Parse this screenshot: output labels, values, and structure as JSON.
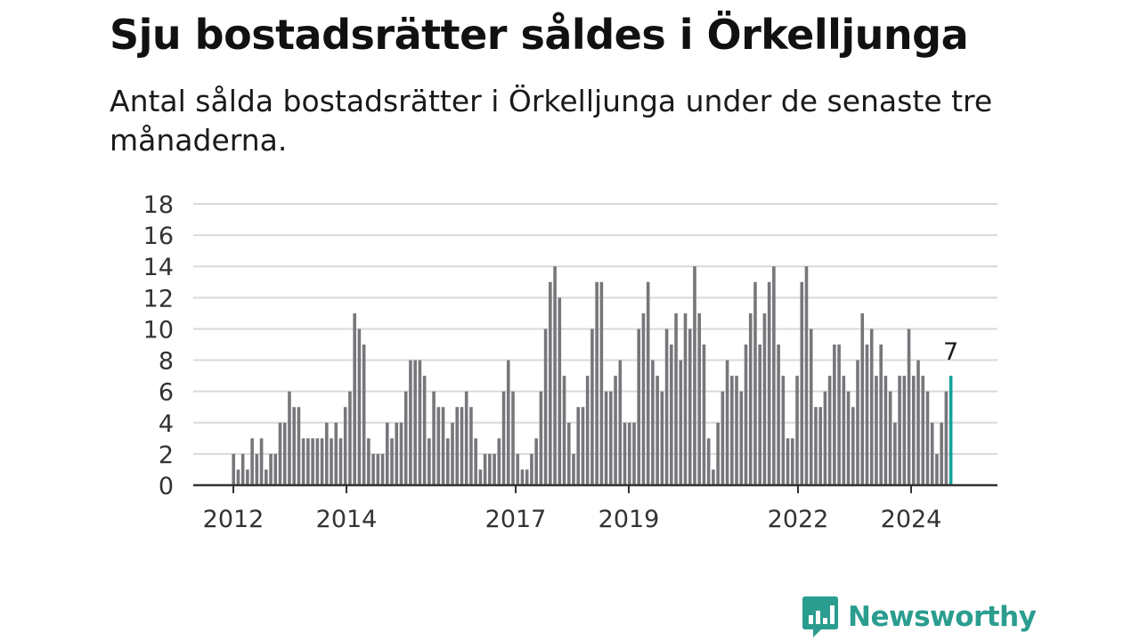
{
  "title": "Sju bostadsrätter såldes i Örkelljunga",
  "subtitle": "Antal sålda bostadsrätter i Örkelljunga under de senaste tre månaderna.",
  "brand": {
    "name": "Newsworthy",
    "color": "#2a9d8f"
  },
  "colors": {
    "bar": "#77767b",
    "highlight": "#12a39a",
    "grid": "#d9d9d9",
    "axis": "#333333"
  },
  "chart_data": {
    "type": "bar",
    "ylim": [
      0,
      18
    ],
    "y_ticks": [
      "0",
      "2",
      "4",
      "6",
      "8",
      "10",
      "12",
      "14",
      "16",
      "18"
    ],
    "x_tick_labels": [
      "2012",
      "2014",
      "2017",
      "2019",
      "2022",
      "2024"
    ],
    "grid": true,
    "highlight": {
      "label": "7",
      "value": 7
    },
    "values": [
      2,
      1,
      2,
      1,
      3,
      2,
      3,
      1,
      2,
      2,
      4,
      4,
      6,
      5,
      5,
      3,
      3,
      3,
      3,
      3,
      4,
      3,
      4,
      3,
      5,
      6,
      11,
      10,
      9,
      3,
      2,
      2,
      2,
      4,
      3,
      4,
      4,
      6,
      8,
      8,
      8,
      7,
      3,
      6,
      5,
      5,
      3,
      4,
      5,
      5,
      6,
      5,
      3,
      1,
      2,
      2,
      2,
      3,
      6,
      8,
      6,
      2,
      1,
      1,
      2,
      3,
      6,
      10,
      13,
      14,
      12,
      7,
      4,
      2,
      5,
      5,
      7,
      10,
      13,
      13,
      6,
      6,
      7,
      8,
      4,
      4,
      4,
      10,
      11,
      13,
      8,
      7,
      6,
      10,
      9,
      11,
      8,
      11,
      10,
      14,
      11,
      9,
      3,
      1,
      4,
      6,
      8,
      7,
      7,
      6,
      9,
      11,
      13,
      9,
      11,
      13,
      14,
      9,
      7,
      3,
      3,
      7,
      13,
      14,
      10,
      5,
      5,
      6,
      7,
      9,
      9,
      7,
      6,
      5,
      8,
      11,
      9,
      10,
      7,
      9,
      7,
      6,
      4,
      7,
      7,
      10,
      7,
      8,
      7,
      6,
      4,
      2,
      4,
      6,
      7
    ]
  }
}
